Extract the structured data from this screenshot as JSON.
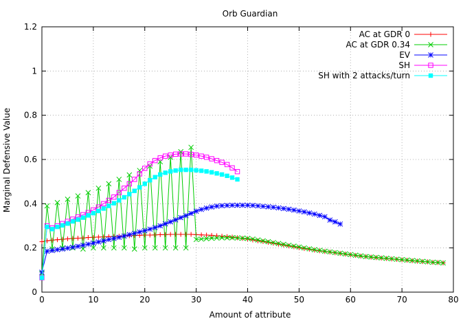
{
  "chart_data": {
    "type": "line",
    "title": "Orb Guardian",
    "xlabel": "Amount of attribute",
    "ylabel": "Marginal Defensive Value",
    "xlim": [
      0,
      80
    ],
    "ylim": [
      0,
      1.2
    ],
    "x_ticks": [
      "0",
      "10",
      "20",
      "30",
      "40",
      "50",
      "60",
      "70",
      "80"
    ],
    "y_ticks": [
      "0",
      "0.2",
      "0.4",
      "0.6",
      "0.8",
      "1",
      "1.2"
    ],
    "grid": true,
    "legend_position": "top-right",
    "series": [
      {
        "name": "AC at GDR 0",
        "color": "#ff0000",
        "marker": "plus",
        "x": [
          0,
          1,
          2,
          3,
          4,
          5,
          6,
          7,
          8,
          9,
          10,
          11,
          12,
          13,
          14,
          15,
          16,
          17,
          18,
          19,
          20,
          21,
          22,
          23,
          24,
          25,
          26,
          27,
          28,
          29,
          30,
          31,
          32,
          33,
          34,
          35,
          36,
          37,
          38,
          39,
          40,
          41,
          42,
          43,
          44,
          45,
          46,
          47,
          48,
          49,
          50,
          51,
          52,
          53,
          54,
          55,
          56,
          57,
          58,
          59,
          60,
          61,
          62,
          63,
          64,
          65,
          66,
          67,
          68,
          69,
          70,
          71,
          72,
          73,
          74,
          75,
          76,
          77,
          78
        ],
        "values": [
          0.228,
          0.232,
          0.235,
          0.237,
          0.239,
          0.241,
          0.243,
          0.244,
          0.245,
          0.247,
          0.248,
          0.249,
          0.25,
          0.251,
          0.252,
          0.253,
          0.254,
          0.255,
          0.256,
          0.257,
          0.258,
          0.258,
          0.259,
          0.26,
          0.26,
          0.261,
          0.261,
          0.261,
          0.261,
          0.261,
          0.26,
          0.259,
          0.258,
          0.257,
          0.255,
          0.253,
          0.251,
          0.249,
          0.246,
          0.243,
          0.24,
          0.236,
          0.232,
          0.229,
          0.225,
          0.221,
          0.217,
          0.213,
          0.209,
          0.205,
          0.201,
          0.197,
          0.194,
          0.19,
          0.187,
          0.184,
          0.181,
          0.178,
          0.175,
          0.172,
          0.169,
          0.166,
          0.163,
          0.161,
          0.158,
          0.156,
          0.154,
          0.152,
          0.15,
          0.148,
          0.146,
          0.144,
          0.142,
          0.14,
          0.138,
          0.137,
          0.135,
          0.134,
          0.132
        ]
      },
      {
        "name": "AC at GDR 0.34",
        "color": "#00cc00",
        "marker": "cross",
        "x": [
          0,
          1,
          2,
          3,
          4,
          5,
          6,
          7,
          8,
          9,
          10,
          11,
          12,
          13,
          14,
          15,
          16,
          17,
          18,
          19,
          20,
          21,
          22,
          23,
          24,
          25,
          26,
          27,
          28,
          29,
          30,
          31,
          32,
          33,
          34,
          35,
          36,
          37,
          38,
          39,
          40,
          41,
          42,
          43,
          44,
          45,
          46,
          47,
          48,
          49,
          50,
          51,
          52,
          53,
          54,
          55,
          56,
          57,
          58,
          59,
          60,
          61,
          62,
          63,
          64,
          65,
          66,
          67,
          68,
          69,
          70,
          71,
          72,
          73,
          74,
          75,
          76,
          77,
          78
        ],
        "values": [
          0.085,
          0.39,
          0.195,
          0.405,
          0.2,
          0.42,
          0.2,
          0.435,
          0.195,
          0.45,
          0.2,
          0.47,
          0.2,
          0.49,
          0.2,
          0.51,
          0.2,
          0.53,
          0.195,
          0.55,
          0.2,
          0.57,
          0.2,
          0.59,
          0.2,
          0.61,
          0.2,
          0.635,
          0.2,
          0.655,
          0.238,
          0.24,
          0.242,
          0.244,
          0.245,
          0.246,
          0.246,
          0.246,
          0.245,
          0.244,
          0.243,
          0.24,
          0.236,
          0.232,
          0.228,
          0.224,
          0.22,
          0.216,
          0.212,
          0.208,
          0.204,
          0.2,
          0.196,
          0.192,
          0.189,
          0.185,
          0.182,
          0.179,
          0.176,
          0.173,
          0.17,
          0.167,
          0.164,
          0.161,
          0.159,
          0.157,
          0.155,
          0.153,
          0.151,
          0.149,
          0.147,
          0.145,
          0.143,
          0.141,
          0.139,
          0.137,
          0.135,
          0.134,
          0.132
        ]
      },
      {
        "name": "EV",
        "color": "#0000ff",
        "marker": "star",
        "x": [
          0,
          1,
          2,
          3,
          4,
          5,
          6,
          7,
          8,
          9,
          10,
          11,
          12,
          13,
          14,
          15,
          16,
          17,
          18,
          19,
          20,
          21,
          22,
          23,
          24,
          25,
          26,
          27,
          28,
          29,
          30,
          31,
          32,
          33,
          34,
          35,
          36,
          37,
          38,
          39,
          40,
          41,
          42,
          43,
          44,
          45,
          46,
          47,
          48,
          49,
          50,
          51,
          52,
          53,
          54,
          55,
          56,
          57,
          58
        ],
        "values": [
          0.09,
          0.185,
          0.188,
          0.192,
          0.195,
          0.199,
          0.203,
          0.207,
          0.212,
          0.217,
          0.222,
          0.227,
          0.232,
          0.238,
          0.243,
          0.248,
          0.254,
          0.26,
          0.266,
          0.272,
          0.278,
          0.285,
          0.292,
          0.3,
          0.309,
          0.318,
          0.327,
          0.337,
          0.346,
          0.356,
          0.366,
          0.374,
          0.38,
          0.385,
          0.389,
          0.391,
          0.392,
          0.393,
          0.393,
          0.393,
          0.393,
          0.392,
          0.39,
          0.388,
          0.386,
          0.384,
          0.381,
          0.378,
          0.375,
          0.371,
          0.367,
          0.363,
          0.358,
          0.353,
          0.347,
          0.341,
          0.326,
          0.318,
          0.308
        ]
      },
      {
        "name": "SH",
        "color": "#ff00ff",
        "marker": "open-square",
        "x": [
          0,
          1,
          2,
          3,
          4,
          5,
          6,
          7,
          8,
          9,
          10,
          11,
          12,
          13,
          14,
          15,
          16,
          17,
          18,
          19,
          20,
          21,
          22,
          23,
          24,
          25,
          26,
          27,
          28,
          29,
          30,
          31,
          32,
          33,
          34,
          35,
          36,
          37,
          38
        ],
        "values": [
          0.065,
          0.3,
          0.29,
          0.3,
          0.31,
          0.32,
          0.33,
          0.34,
          0.35,
          0.36,
          0.372,
          0.385,
          0.4,
          0.415,
          0.43,
          0.45,
          0.47,
          0.49,
          0.51,
          0.535,
          0.56,
          0.58,
          0.595,
          0.607,
          0.615,
          0.62,
          0.624,
          0.625,
          0.625,
          0.623,
          0.62,
          0.615,
          0.61,
          0.603,
          0.595,
          0.587,
          0.577,
          0.562,
          0.545
        ]
      },
      {
        "name": "SH with 2 attacks/turn",
        "color": "#00ffff",
        "marker": "filled-square",
        "x": [
          0,
          1,
          2,
          3,
          4,
          5,
          6,
          7,
          8,
          9,
          10,
          11,
          12,
          13,
          14,
          15,
          16,
          17,
          18,
          19,
          20,
          21,
          22,
          23,
          24,
          25,
          26,
          27,
          28,
          29,
          30,
          31,
          32,
          33,
          34,
          35,
          36,
          37,
          38
        ],
        "values": [
          0.065,
          0.295,
          0.285,
          0.295,
          0.302,
          0.31,
          0.32,
          0.328,
          0.337,
          0.347,
          0.357,
          0.367,
          0.378,
          0.39,
          0.402,
          0.415,
          0.429,
          0.443,
          0.458,
          0.474,
          0.49,
          0.506,
          0.52,
          0.532,
          0.54,
          0.546,
          0.55,
          0.553,
          0.553,
          0.553,
          0.551,
          0.549,
          0.546,
          0.542,
          0.537,
          0.532,
          0.526,
          0.518,
          0.51
        ]
      }
    ]
  }
}
